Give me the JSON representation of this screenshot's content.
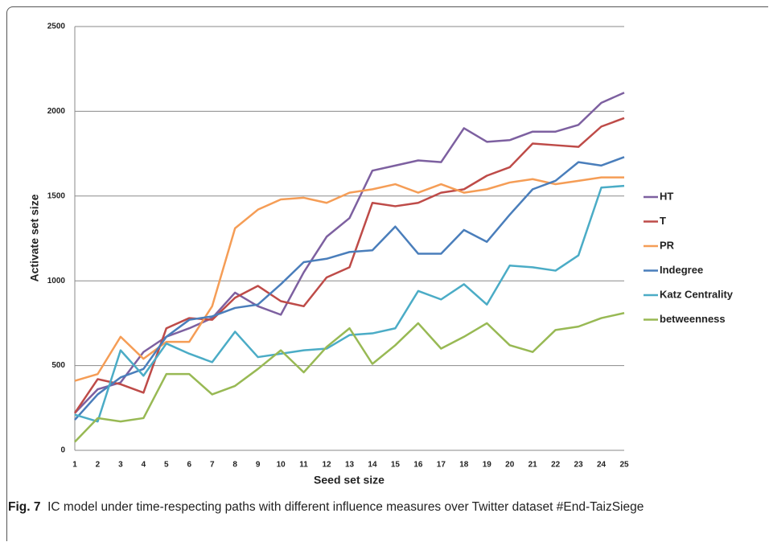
{
  "chart_data": {
    "type": "line",
    "xlabel": "Seed set size",
    "ylabel": "Activate set size",
    "x": [
      1,
      2,
      3,
      4,
      5,
      6,
      7,
      8,
      9,
      10,
      11,
      12,
      13,
      14,
      15,
      16,
      17,
      18,
      19,
      20,
      21,
      22,
      23,
      24,
      25
    ],
    "xlim": [
      1,
      25
    ],
    "xticks": [
      1,
      2,
      3,
      4,
      5,
      6,
      7,
      8,
      9,
      10,
      11,
      12,
      13,
      14,
      15,
      16,
      17,
      18,
      19,
      20,
      21,
      22,
      23,
      24,
      25
    ],
    "ylim": [
      0,
      2500
    ],
    "yticks": [
      0,
      500,
      1000,
      1500,
      2000,
      2500
    ],
    "grid": true,
    "legend": "right",
    "series": [
      {
        "name": "HT",
        "color": "#7d60a0",
        "values": [
          220,
          360,
          400,
          580,
          670,
          720,
          780,
          930,
          850,
          800,
          1050,
          1260,
          1370,
          1650,
          1680,
          1710,
          1700,
          1900,
          1820,
          1830,
          1880,
          1880,
          1920,
          2050,
          2110
        ]
      },
      {
        "name": "T",
        "color": "#be4b48",
        "values": [
          220,
          420,
          390,
          340,
          720,
          780,
          770,
          900,
          970,
          880,
          850,
          1020,
          1080,
          1460,
          1440,
          1460,
          1520,
          1540,
          1620,
          1670,
          1810,
          1800,
          1790,
          1910,
          1960
        ]
      },
      {
        "name": "PR",
        "color": "#f59d56",
        "values": [
          410,
          450,
          670,
          540,
          640,
          640,
          850,
          1310,
          1420,
          1480,
          1490,
          1460,
          1520,
          1540,
          1570,
          1520,
          1570,
          1520,
          1540,
          1580,
          1600,
          1570,
          1590,
          1610,
          1610
        ]
      },
      {
        "name": "Indegree",
        "color": "#4a7ebb",
        "values": [
          180,
          330,
          430,
          480,
          670,
          770,
          790,
          840,
          860,
          980,
          1110,
          1130,
          1170,
          1180,
          1320,
          1160,
          1160,
          1300,
          1230,
          1390,
          1540,
          1590,
          1700,
          1680,
          1730
        ]
      },
      {
        "name": "Katz Centrality",
        "color": "#4bacc6",
        "values": [
          210,
          170,
          590,
          440,
          630,
          570,
          520,
          700,
          550,
          570,
          590,
          600,
          680,
          690,
          720,
          940,
          890,
          980,
          860,
          1090,
          1080,
          1060,
          1150,
          1550,
          1560
        ]
      },
      {
        "name": "betweenness",
        "color": "#98b954",
        "values": [
          50,
          190,
          170,
          190,
          450,
          450,
          330,
          380,
          480,
          590,
          460,
          610,
          720,
          510,
          620,
          750,
          600,
          670,
          750,
          620,
          580,
          710,
          730,
          780,
          810
        ]
      }
    ]
  },
  "caption": {
    "label": "Fig. 7",
    "text": "IC model under time-respecting paths with different influence measures over Twitter dataset #End-TaizSiege"
  }
}
